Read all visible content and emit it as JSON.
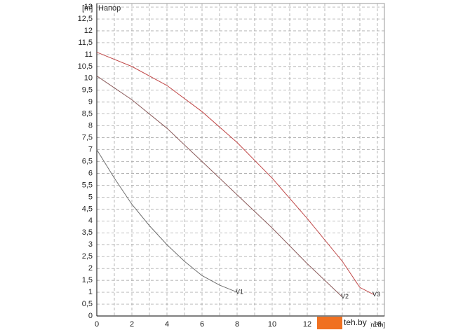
{
  "chart_data": {
    "type": "line",
    "y_unit": "[m]",
    "title": "Напор",
    "x_unit": "[m³/h]",
    "watermark": "teh.by",
    "xlim": [
      0,
      16.4
    ],
    "ylim": [
      0,
      13.15
    ],
    "xticks": [
      0,
      2,
      4,
      6,
      8,
      10,
      12,
      14,
      16
    ],
    "xminor": [
      1,
      3,
      5,
      7,
      9,
      11,
      13,
      15
    ],
    "yticks": [
      0,
      {
        "value": 0.5,
        "label": "0,5"
      },
      1,
      {
        "value": 1.5,
        "label": "1,5"
      },
      2,
      {
        "value": 2.5,
        "label": "2,5"
      },
      3,
      {
        "value": 3.5,
        "label": "3,5"
      },
      4,
      {
        "value": 4.5,
        "label": "4,5"
      },
      5,
      {
        "value": 5.5,
        "label": "5,5"
      },
      6,
      {
        "value": 6.5,
        "label": "6,5"
      },
      7,
      {
        "value": 7.5,
        "label": "7,5"
      },
      8,
      {
        "value": 8.5,
        "label": "8,5"
      },
      9,
      {
        "value": 9.5,
        "label": "9,5"
      },
      10,
      {
        "value": 10.5,
        "label": "10,5"
      },
      11,
      {
        "value": 11.5,
        "label": "11,5"
      },
      12,
      {
        "value": 12.5,
        "label": "12,5"
      },
      13
    ],
    "grid": true,
    "series": [
      {
        "name": "V1",
        "color": "#707070",
        "x": [
          0,
          1,
          2,
          3,
          4,
          5,
          6,
          7,
          8
        ],
        "values": [
          7.0,
          5.8,
          4.7,
          3.8,
          3.0,
          2.3,
          1.7,
          1.3,
          1.0
        ]
      },
      {
        "name": "V2",
        "color": "#8a5a5a",
        "x": [
          0,
          2,
          4,
          6,
          8,
          10,
          12,
          14
        ],
        "values": [
          10.1,
          9.1,
          7.9,
          6.5,
          5.1,
          3.7,
          2.2,
          0.8
        ]
      },
      {
        "name": "V3",
        "color": "#c04848",
        "x": [
          0,
          2,
          4,
          6,
          8,
          10,
          12,
          14,
          15,
          15.8
        ],
        "values": [
          11.1,
          10.5,
          9.7,
          8.6,
          7.3,
          5.8,
          4.1,
          2.3,
          1.2,
          0.9
        ]
      }
    ]
  }
}
